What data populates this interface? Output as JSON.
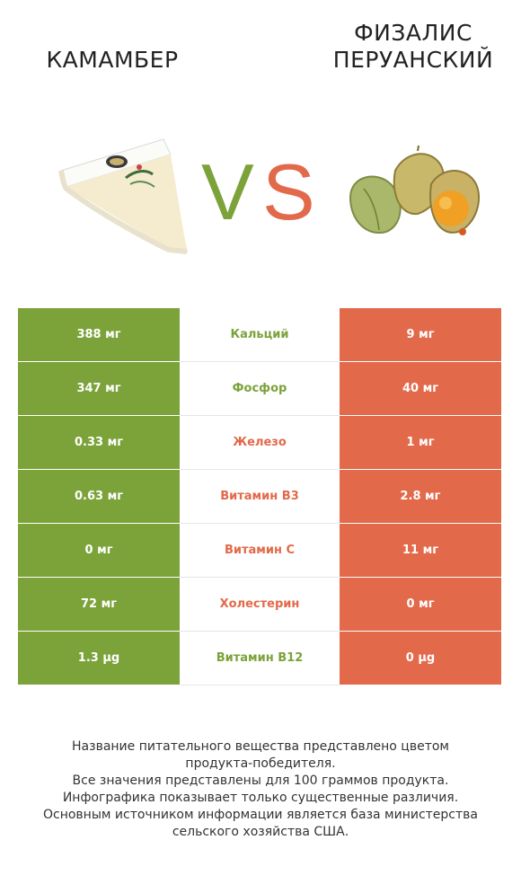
{
  "header": {
    "left_title": "Камамбер",
    "right_title_line1": "Физалис",
    "right_title_line2": "перуанский",
    "vs_v": "V",
    "vs_s": "S"
  },
  "colors": {
    "left": "#7ca23a",
    "right": "#e2694a"
  },
  "rows": [
    {
      "left": "388 мг",
      "name": "Кальций",
      "right": "9 мг",
      "winner": "left"
    },
    {
      "left": "347 мг",
      "name": "Фосфор",
      "right": "40 мг",
      "winner": "left"
    },
    {
      "left": "0.33 мг",
      "name": "Железо",
      "right": "1 мг",
      "winner": "right"
    },
    {
      "left": "0.63 мг",
      "name": "Витамин B3",
      "right": "2.8 мг",
      "winner": "right"
    },
    {
      "left": "0 мг",
      "name": "Витамин C",
      "right": "11 мг",
      "winner": "right"
    },
    {
      "left": "72 мг",
      "name": "Холестерин",
      "right": "0 мг",
      "winner": "right"
    },
    {
      "left": "1.3 µg",
      "name": "Витамин B12",
      "right": "0 µg",
      "winner": "left"
    }
  ],
  "footer": {
    "line1": "Название питательного вещества представлено цветом",
    "line2": "продукта-победителя.",
    "line3": "Все значения представлены для 100 граммов продукта.",
    "line4": "Инфографика показывает только существенные различия.",
    "line5": "Основным источником информации является база министерства",
    "line6": "сельского хозяйства США."
  },
  "images": {
    "left": "camembert-cheese-image",
    "right": "physalis-fruit-image"
  }
}
